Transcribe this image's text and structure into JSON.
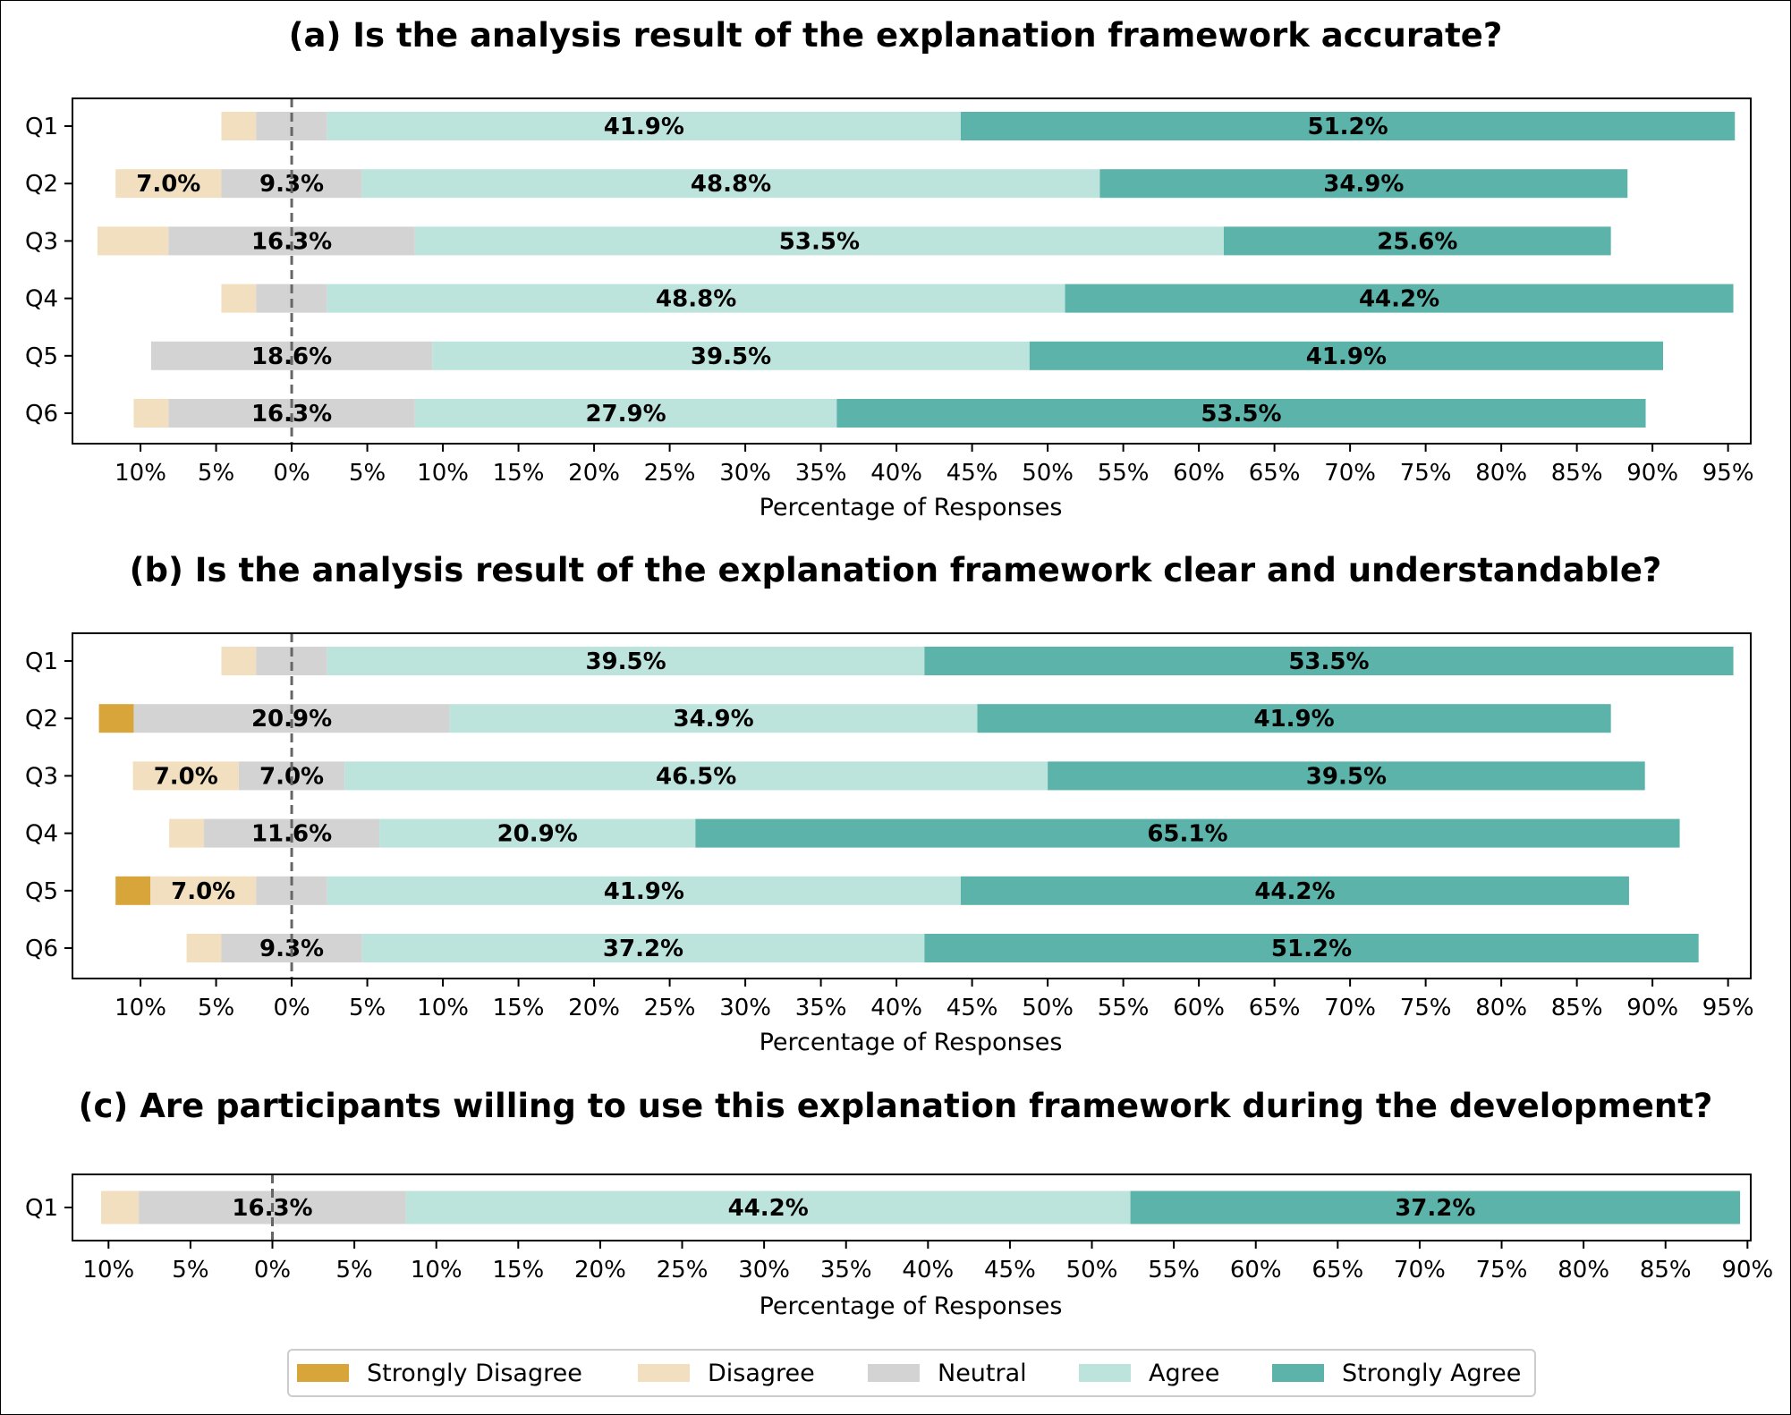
{
  "figure": {
    "xlabel": "Percentage of Responses",
    "legend": [
      "Strongly Disagree",
      "Disagree",
      "Neutral",
      "Agree",
      "Strongly Agree"
    ],
    "legend_placement": "bottom-center",
    "colors": {
      "Strongly Disagree": "#d8a53a",
      "Disagree": "#f2dfbf",
      "Neutral": "#d3d3d3",
      "Agree": "#bde3dd",
      "Strongly Agree": "#5cb3aa"
    }
  },
  "chart_data": [
    {
      "type": "bar",
      "orientation": "horizontal-diverging",
      "title": "(a) Is the analysis result of the explanation framework accurate?",
      "xlabel": "Percentage of Responses",
      "xlim": [
        -14.5,
        96.5
      ],
      "ticks": [
        -10,
        -5,
        0,
        5,
        10,
        15,
        20,
        25,
        30,
        35,
        40,
        45,
        50,
        55,
        60,
        65,
        70,
        75,
        80,
        85,
        90,
        95
      ],
      "tick_labels": [
        "10%",
        "5%",
        "0%",
        "5%",
        "10%",
        "15%",
        "20%",
        "25%",
        "30%",
        "35%",
        "40%",
        "45%",
        "50%",
        "55%",
        "60%",
        "65%",
        "70%",
        "75%",
        "80%",
        "85%",
        "90%",
        "95%"
      ],
      "categories": [
        "Q1",
        "Q2",
        "Q3",
        "Q4",
        "Q5",
        "Q6"
      ],
      "series": [
        {
          "name": "Strongly Disagree",
          "values": [
            0.0,
            0.0,
            0.0,
            0.0,
            0.0,
            0.0
          ]
        },
        {
          "name": "Disagree",
          "values": [
            2.3,
            7.0,
            4.7,
            2.3,
            0.0,
            2.3
          ]
        },
        {
          "name": "Neutral",
          "values": [
            4.7,
            9.3,
            16.3,
            4.7,
            18.6,
            16.3
          ]
        },
        {
          "name": "Agree",
          "values": [
            41.9,
            48.8,
            53.5,
            48.8,
            39.5,
            27.9
          ]
        },
        {
          "name": "Strongly Agree",
          "values": [
            51.2,
            34.9,
            25.6,
            44.2,
            41.9,
            53.5
          ]
        }
      ],
      "data_labels": [
        [
          "",
          "",
          "",
          "41.9%",
          "51.2%"
        ],
        [
          "",
          "7.0%",
          "9.3%",
          "48.8%",
          "34.9%"
        ],
        [
          "",
          "",
          "16.3%",
          "53.5%",
          "25.6%"
        ],
        [
          "",
          "",
          "",
          "48.8%",
          "44.2%"
        ],
        [
          "",
          "",
          "18.6%",
          "39.5%",
          "41.9%"
        ],
        [
          "",
          "",
          "16.3%",
          "27.9%",
          "53.5%"
        ]
      ],
      "grid": false
    },
    {
      "type": "bar",
      "orientation": "horizontal-diverging",
      "title": "(b) Is the analysis result of the explanation framework clear and understandable?",
      "xlabel": "Percentage of Responses",
      "xlim": [
        -14.5,
        96.5
      ],
      "ticks": [
        -10,
        -5,
        0,
        5,
        10,
        15,
        20,
        25,
        30,
        35,
        40,
        45,
        50,
        55,
        60,
        65,
        70,
        75,
        80,
        85,
        90,
        95
      ],
      "tick_labels": [
        "10%",
        "5%",
        "0%",
        "5%",
        "10%",
        "15%",
        "20%",
        "25%",
        "30%",
        "35%",
        "40%",
        "45%",
        "50%",
        "55%",
        "60%",
        "65%",
        "70%",
        "75%",
        "80%",
        "85%",
        "90%",
        "95%"
      ],
      "categories": [
        "Q1",
        "Q2",
        "Q3",
        "Q4",
        "Q5",
        "Q6"
      ],
      "series": [
        {
          "name": "Strongly Disagree",
          "values": [
            0.0,
            2.3,
            0.0,
            0.0,
            2.3,
            0.0
          ]
        },
        {
          "name": "Disagree",
          "values": [
            2.3,
            0.0,
            7.0,
            2.3,
            7.0,
            2.3
          ]
        },
        {
          "name": "Neutral",
          "values": [
            4.7,
            20.9,
            7.0,
            11.6,
            4.7,
            9.3
          ]
        },
        {
          "name": "Agree",
          "values": [
            39.5,
            34.9,
            46.5,
            20.9,
            41.9,
            37.2
          ]
        },
        {
          "name": "Strongly Agree",
          "values": [
            53.5,
            41.9,
            39.5,
            65.1,
            44.2,
            51.2
          ]
        }
      ],
      "data_labels": [
        [
          "",
          "",
          "",
          "39.5%",
          "53.5%"
        ],
        [
          "",
          "",
          "20.9%",
          "34.9%",
          "41.9%"
        ],
        [
          "",
          "7.0%",
          "7.0%",
          "46.5%",
          "39.5%"
        ],
        [
          "",
          "",
          "11.6%",
          "20.9%",
          "65.1%"
        ],
        [
          "",
          "7.0%",
          "",
          "41.9%",
          "44.2%"
        ],
        [
          "",
          "",
          "9.3%",
          "37.2%",
          "51.2%"
        ]
      ],
      "grid": false
    },
    {
      "type": "bar",
      "orientation": "horizontal-diverging",
      "title": "(c) Are participants willing to use this explanation framework during the development?",
      "xlabel": "Percentage of Responses",
      "xlim": [
        -12.2,
        90.2
      ],
      "ticks": [
        -10,
        -5,
        0,
        5,
        10,
        15,
        20,
        25,
        30,
        35,
        40,
        45,
        50,
        55,
        60,
        65,
        70,
        75,
        80,
        85,
        90
      ],
      "tick_labels": [
        "10%",
        "5%",
        "0%",
        "5%",
        "10%",
        "15%",
        "20%",
        "25%",
        "30%",
        "35%",
        "40%",
        "45%",
        "50%",
        "55%",
        "60%",
        "65%",
        "70%",
        "75%",
        "80%",
        "85%",
        "90%"
      ],
      "categories": [
        "Q1"
      ],
      "series": [
        {
          "name": "Strongly Disagree",
          "values": [
            0.0
          ]
        },
        {
          "name": "Disagree",
          "values": [
            2.3
          ]
        },
        {
          "name": "Neutral",
          "values": [
            16.3
          ]
        },
        {
          "name": "Agree",
          "values": [
            44.2
          ]
        },
        {
          "name": "Strongly Agree",
          "values": [
            37.2
          ]
        }
      ],
      "data_labels": [
        [
          "",
          "",
          "16.3%",
          "44.2%",
          "37.2%"
        ]
      ],
      "grid": false
    }
  ]
}
